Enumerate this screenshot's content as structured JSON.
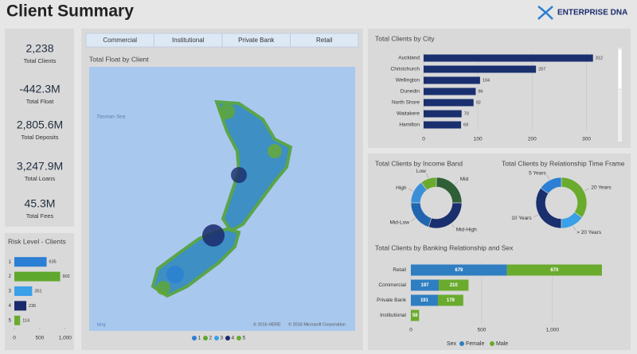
{
  "header": {
    "title": "Client Summary",
    "logo": "ENTERPRISE DNA"
  },
  "kpis": [
    {
      "value": "2,238",
      "label": "Total Clients"
    },
    {
      "value": "-442.3M",
      "label": "Total Float"
    },
    {
      "value": "2,805.6M",
      "label": "Total Deposits"
    },
    {
      "value": "3,247.9M",
      "label": "Total Loans"
    },
    {
      "value": "45.3M",
      "label": "Total Fees"
    }
  ],
  "slicer": [
    "Commercial",
    "Institutional",
    "Private Bank",
    "Retail"
  ],
  "chart_data": [
    {
      "type": "hbar",
      "title": "Risk Level - Clients",
      "categories": [
        "1",
        "2",
        "3",
        "4",
        "5"
      ],
      "values": [
        635,
        902,
        351,
        236,
        114
      ],
      "colors": [
        "#2b7fd4",
        "#5fa82e",
        "#3aa0e8",
        "#1a2a6c",
        "#6aab2e"
      ],
      "xlim": [
        0,
        1050
      ],
      "xticks": [
        0,
        500,
        {
          "value": 1000,
          "label": "1,000"
        }
      ]
    },
    {
      "type": "hbar",
      "title": "Total Clients by City",
      "categories": [
        "Auckland",
        "Christchurch",
        "Wellington",
        "Dunedin",
        "North Shore",
        "Waitakere",
        "Hamilton"
      ],
      "values": [
        312,
        207,
        104,
        96,
        92,
        70,
        69
      ],
      "color": "#1a2f6e",
      "xlim": [
        0,
        330
      ],
      "xticks": [
        0,
        100,
        200,
        300
      ],
      "grid": true
    },
    {
      "type": "donut",
      "title": "Total Clients by Income Band",
      "categories": [
        "Mid",
        "Mid-High",
        "Mid-Low",
        "High",
        "Low"
      ],
      "values": [
        560,
        670,
        450,
        330,
        228
      ],
      "colors": [
        "#2f5f36",
        "#1a2f6e",
        "#2165b0",
        "#3a8fd8",
        "#6aab2e"
      ]
    },
    {
      "type": "donut",
      "title": "Total Clients by Relationship Time Frame",
      "categories": [
        "20 Years",
        "> 20 Years",
        "10 Years",
        "5 Years"
      ],
      "values": [
        780,
        340,
        780,
        338
      ],
      "colors": [
        "#6aab2e",
        "#3aa0e8",
        "#1a2f6e",
        "#2b7fd4"
      ]
    },
    {
      "type": "stacked_hbar",
      "title": "Total Clients by Banking Relationship and Sex",
      "categories": [
        "Retail",
        "Commercial",
        "Private Bank",
        "Institutional"
      ],
      "series": [
        {
          "name": "Female",
          "color": "#2f7ec2",
          "values": [
            679,
            197,
            191,
            null
          ]
        },
        {
          "name": "Male",
          "color": "#6aab2e",
          "values": [
            670,
            210,
            179,
            58
          ]
        }
      ],
      "legend_title": "Sex",
      "xlim": [
        0,
        1400
      ],
      "xticks": [
        0,
        500,
        {
          "value": 1000,
          "label": "1,000"
        }
      ],
      "grid": true
    },
    {
      "type": "map",
      "title": "Total Float by Client",
      "legend": [
        {
          "name": "1",
          "color": "#2b7fd4"
        },
        {
          "name": "2",
          "color": "#5fa82e"
        },
        {
          "name": "3",
          "color": "#3aa0e8"
        },
        {
          "name": "4",
          "color": "#1a2a6c"
        },
        {
          "name": "5",
          "color": "#6aab2e"
        }
      ],
      "annotations": [
        "Tasman Sea",
        "© 2016 HERE",
        "© 2016 Microsoft Corporation",
        "bing"
      ]
    }
  ]
}
